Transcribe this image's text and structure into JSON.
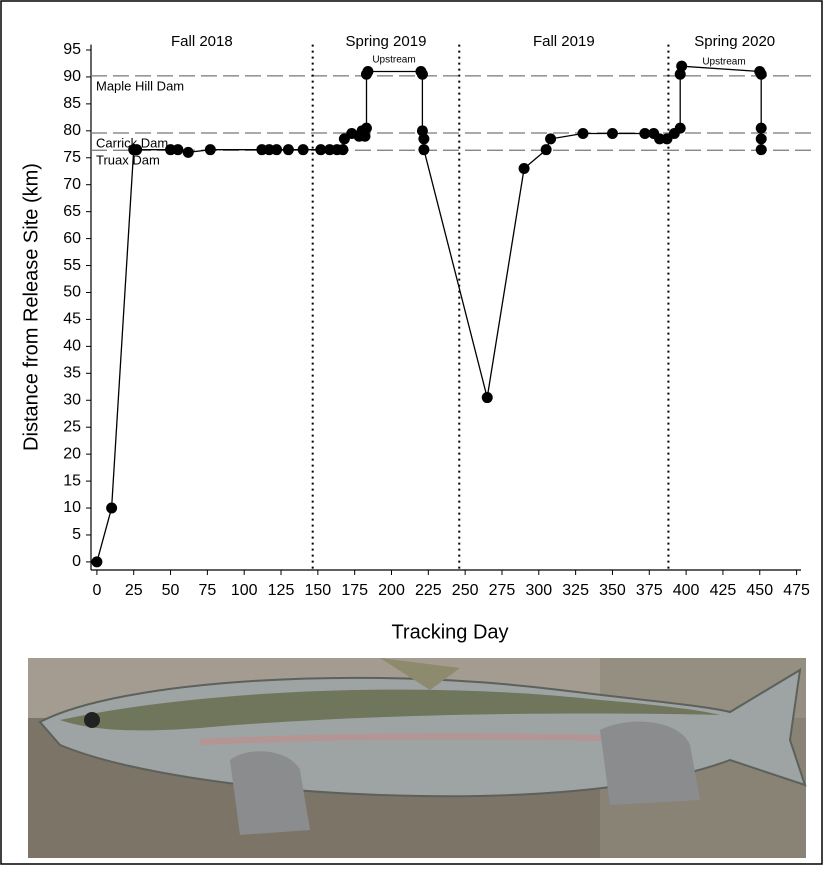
{
  "chart_data": {
    "type": "line",
    "y_label": "Distance from Release Site (km)",
    "x_label": "Tracking Day",
    "xlim": [
      -4,
      478
    ],
    "ylim": [
      -1.5,
      96
    ],
    "xticks": [
      0,
      25,
      50,
      75,
      100,
      125,
      150,
      175,
      200,
      225,
      250,
      275,
      300,
      325,
      350,
      375,
      400,
      425,
      450,
      475
    ],
    "yticks": [
      0,
      5,
      10,
      15,
      20,
      25,
      30,
      35,
      40,
      45,
      50,
      55,
      60,
      65,
      70,
      75,
      80,
      85,
      90,
      95
    ],
    "color": "#000000",
    "x": [
      0,
      10,
      25,
      27,
      50,
      55,
      62,
      77,
      112,
      117,
      122,
      130,
      140,
      152,
      158,
      163,
      167,
      168,
      173,
      178,
      180,
      182,
      183,
      183,
      184,
      220,
      221,
      221,
      222,
      222,
      265,
      290,
      305,
      308,
      330,
      350,
      372,
      378,
      382,
      387,
      392,
      396,
      396,
      397,
      450,
      451,
      451,
      451,
      451
    ],
    "values": [
      0,
      10,
      76.5,
      76.5,
      76.5,
      76.5,
      76,
      76.5,
      76.5,
      76.5,
      76.5,
      76.5,
      76.5,
      76.5,
      76.5,
      76.5,
      76.5,
      78.5,
      79.5,
      79,
      80,
      79,
      80.5,
      90.5,
      91,
      91,
      90.5,
      80,
      78.5,
      76.5,
      30.5,
      73,
      76.5,
      78.5,
      79.5,
      79.5,
      79.5,
      79.5,
      78.5,
      78.5,
      79.5,
      80.5,
      90.5,
      92,
      91,
      90.5,
      80.5,
      78.5,
      76.5
    ],
    "reference_lines": [
      {
        "label": "Maple Hill Dam",
        "value": 90.2
      },
      {
        "label": "Carrick Dam",
        "value": 79.6
      },
      {
        "label": "Truax Dam",
        "value": 76.4
      }
    ],
    "season_boundaries": [
      146.5,
      246,
      388
    ],
    "seasons": [
      "Fall 2018",
      "Spring 2019",
      "Fall 2019",
      "Spring 2020"
    ],
    "annotations": [
      "Upstream",
      "Upstream"
    ]
  }
}
